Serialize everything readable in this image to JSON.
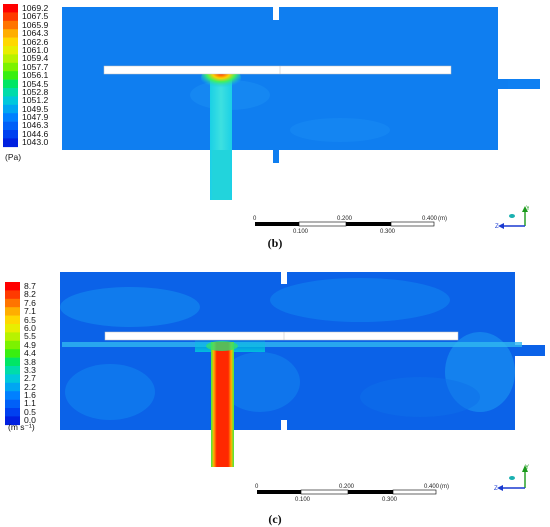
{
  "panels": [
    {
      "caption": "(b)",
      "unit": "(Pa)",
      "legend_values": [
        "1069.2",
        "1067.5",
        "1065.9",
        "1064.3",
        "1062.6",
        "1061.0",
        "1059.4",
        "1057.7",
        "1056.1",
        "1054.5",
        "1052.8",
        "1051.2",
        "1049.5",
        "1047.9",
        "1046.3",
        "1044.6",
        "1043.0"
      ],
      "legend_colors": [
        "#ff0000",
        "#ff3a00",
        "#ff7400",
        "#ffae00",
        "#ffd800",
        "#e8ee00",
        "#b8f200",
        "#7cf200",
        "#39ef10",
        "#00e665",
        "#00dcaa",
        "#00c8dc",
        "#00a6f2",
        "#0080ff",
        "#0060f8",
        "#0040f0",
        "#0020e0"
      ],
      "scale": {
        "labels_top": [
          "0",
          "0.200",
          "0.400"
        ],
        "unit": "(m)",
        "labels_bottom": [
          "0.100",
          "0.300"
        ]
      },
      "axis": {
        "y": "Y",
        "z": "Z"
      }
    },
    {
      "caption": "(c)",
      "unit": "(m s⁻¹)",
      "legend_values": [
        "8.7",
        "8.2",
        "7.6",
        "7.1",
        "6.5",
        "6.0",
        "5.5",
        "4.9",
        "4.4",
        "3.8",
        "3.3",
        "2.7",
        "2.2",
        "1.6",
        "1.1",
        "0.5",
        "0.0"
      ],
      "legend_colors": [
        "#ff0000",
        "#ff3a00",
        "#ff7400",
        "#ffae00",
        "#ffd800",
        "#e8ee00",
        "#b8f200",
        "#7cf200",
        "#39ef10",
        "#00e665",
        "#00dcaa",
        "#00c8dc",
        "#00a6f2",
        "#0080ff",
        "#0060f8",
        "#0040f0",
        "#0020e0"
      ],
      "scale": {
        "labels_top": [
          "0",
          "0.200",
          "0.400"
        ],
        "unit": "(m)",
        "labels_bottom": [
          "0.100",
          "0.300"
        ]
      },
      "axis": {
        "y": "Y",
        "z": "Z"
      }
    }
  ]
}
